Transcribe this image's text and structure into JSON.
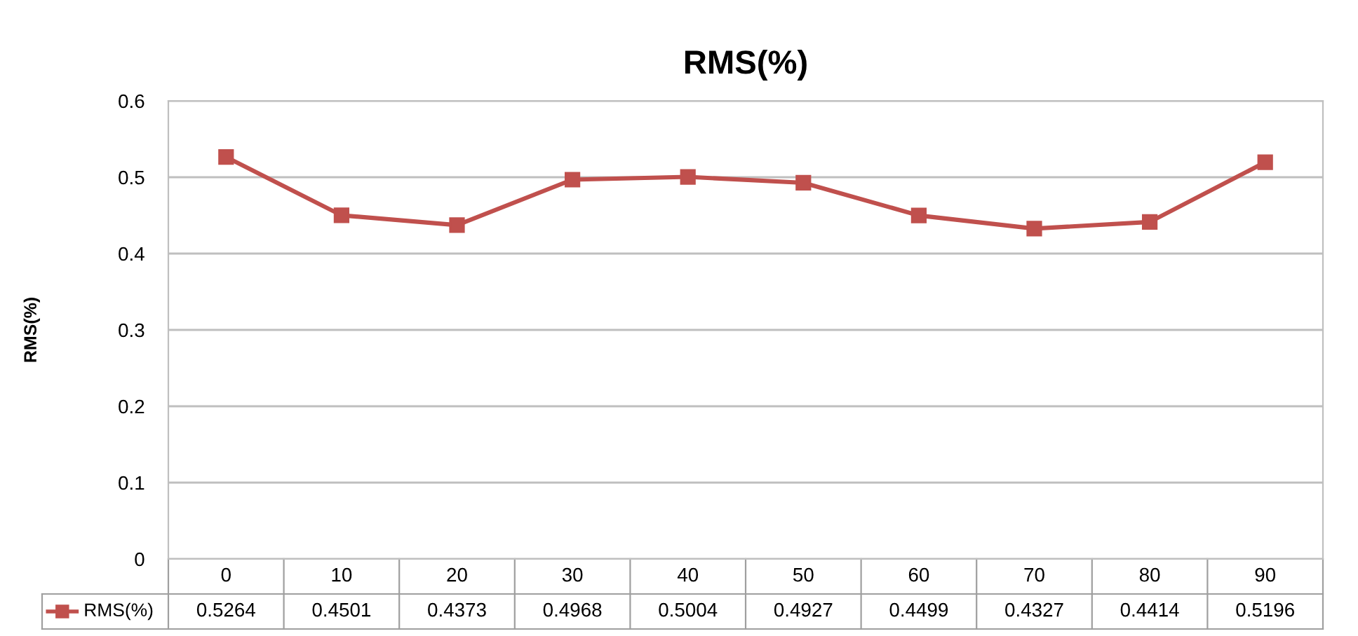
{
  "chart_data": {
    "type": "line",
    "title": "RMS(%)",
    "ylabel": "RMS(%)",
    "categories": [
      "0",
      "10",
      "20",
      "30",
      "40",
      "50",
      "60",
      "70",
      "80",
      "90"
    ],
    "series": [
      {
        "name": "RMS(%)",
        "color": "#c0504d",
        "values": [
          0.5264,
          0.4501,
          0.4373,
          0.4968,
          0.5004,
          0.4927,
          0.4499,
          0.4327,
          0.4414,
          0.5196
        ]
      }
    ],
    "ylim": [
      0,
      0.6
    ],
    "yticks": [
      0,
      0.1,
      0.2,
      0.3,
      0.4,
      0.5,
      0.6
    ],
    "grid": "y",
    "marker": "square",
    "line_style": "solid",
    "legend": "bottom",
    "data_labels": true
  }
}
